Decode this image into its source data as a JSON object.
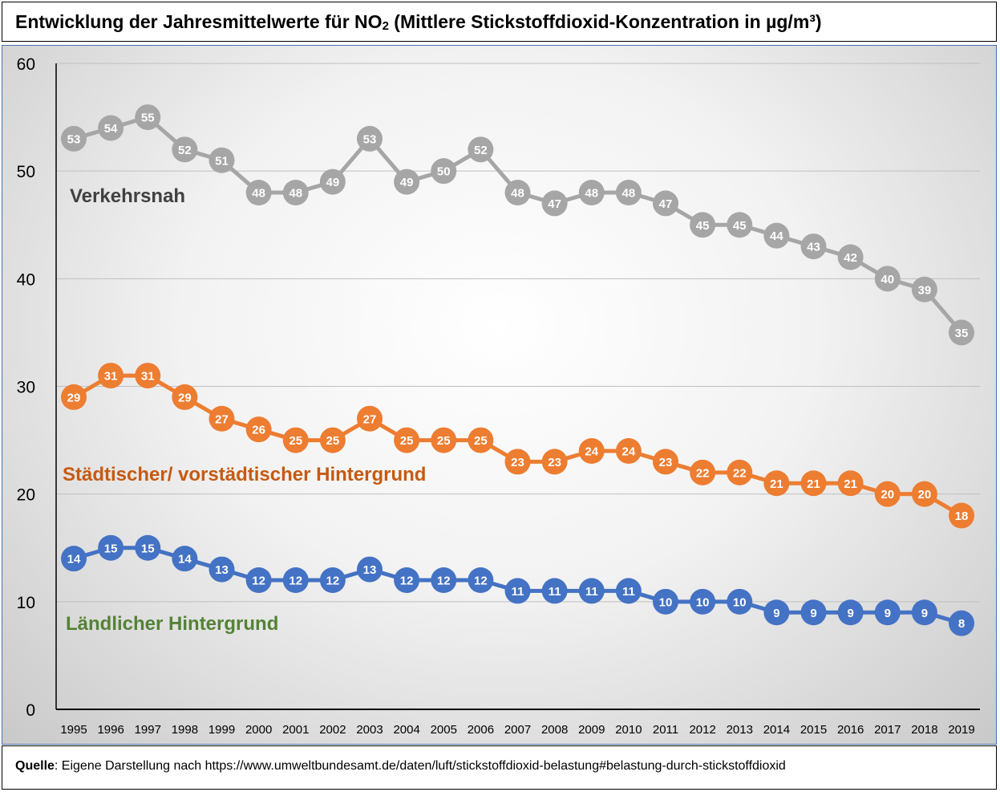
{
  "title": {
    "main": "Entwicklung der Jahresmittelwerte für NO",
    "subscript": "2",
    "rest": " (Mittlere Stickstoffdioxid-Konzentration in µg/m³)"
  },
  "source": {
    "label": "Quelle",
    "text": ": Eigene Darstellung nach https://www.umweltbundesamt.de/daten/luft/stickstoffdioxid-belastung#belastung-durch-stickstoffdioxid"
  },
  "chart_data": {
    "type": "line",
    "title": "Entwicklung der Jahresmittelwerte für NO2 (Mittlere Stickstoffdioxid-Konzentration in µg/m³)",
    "xlabel": "",
    "ylabel": "",
    "ylim": [
      0,
      60
    ],
    "yticks": [
      0,
      10,
      20,
      30,
      40,
      50,
      60
    ],
    "grid": true,
    "categories": [
      "1995",
      "1996",
      "1997",
      "1998",
      "1999",
      "2000",
      "2001",
      "2002",
      "2003",
      "2004",
      "2005",
      "2006",
      "2007",
      "2008",
      "2009",
      "2010",
      "2011",
      "2012",
      "2013",
      "2014",
      "2015",
      "2016",
      "2017",
      "2018",
      "2019"
    ],
    "series": [
      {
        "name": "Verkehrsnah",
        "color": "#a6a6a6",
        "label_color": "#404040",
        "values": [
          53,
          54,
          55,
          52,
          51,
          48,
          48,
          49,
          53,
          49,
          50,
          52,
          48,
          47,
          48,
          48,
          47,
          45,
          45,
          44,
          43,
          42,
          40,
          39,
          35
        ]
      },
      {
        "name": "Städtischer/ vorstädtischer Hintergrund",
        "color": "#ed7d31",
        "label_color": "#c55a11",
        "values": [
          29,
          31,
          31,
          29,
          27,
          26,
          25,
          25,
          27,
          25,
          25,
          25,
          23,
          23,
          24,
          24,
          23,
          22,
          22,
          21,
          21,
          21,
          20,
          20,
          18
        ]
      },
      {
        "name": "Ländlicher Hintergrund",
        "color": "#4472c4",
        "label_color": "#548235",
        "values": [
          14,
          15,
          15,
          14,
          13,
          12,
          12,
          12,
          13,
          12,
          12,
          12,
          11,
          11,
          11,
          11,
          10,
          10,
          10,
          9,
          9,
          9,
          9,
          9,
          8
        ]
      }
    ]
  }
}
